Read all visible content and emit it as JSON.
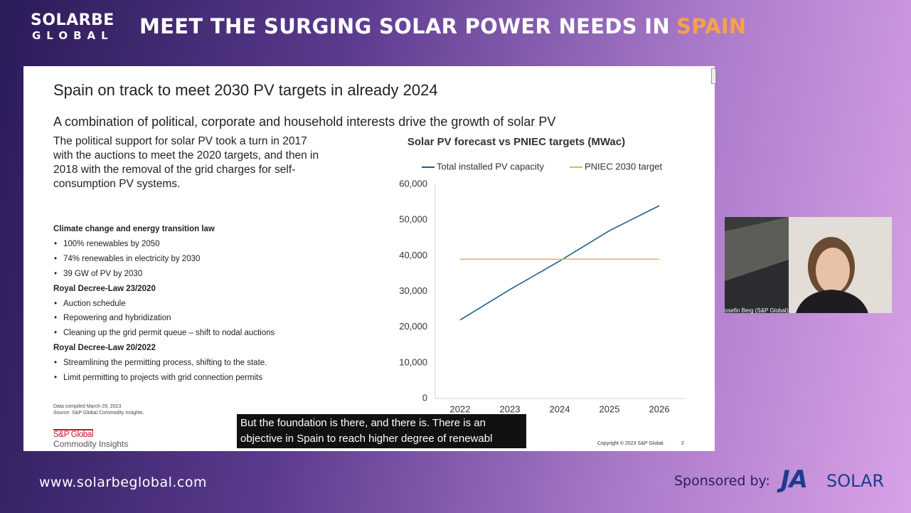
{
  "header": {
    "logo": [
      "SOLARBE",
      "GLOBAL"
    ],
    "title": [
      "MEET THE SURGING SOLAR POWER NEEDS IN",
      "SPAIN"
    ]
  },
  "slide": {
    "title": "Spain on track to meet 2030 PV targets in already 2024",
    "subtitle": "A combination of political, corporate and household interests drive the growth of solar PV",
    "paragraph": [
      "The political support for solar PV took a turn in 2017",
      "with the auctions to meet the 2020 targets, and then in",
      "2018 with the removal of the grid charges for self-",
      "consumption PV systems."
    ],
    "sections": [
      {
        "heading": "Climate change and energy transition law",
        "bullets": [
          "100% renewables by 2050",
          "74% renewables in electricity by 2030",
          "39 GW of PV by 2030"
        ]
      },
      {
        "heading": "Royal Decree-Law 23/2020",
        "bullets": [
          "Auction schedule",
          "Repowering and hybridization",
          "Cleaning up the grid permit queue – shift to nodal auctions"
        ]
      },
      {
        "heading": "Royal Decree-Law 20/2022",
        "bullets": [
          "Streamlining the permitting process, shifting to the state.",
          "Limit permitting to projects with grid connection permits"
        ]
      }
    ],
    "notes": [
      "Data compiled March 29, 2023",
      "Source: S&P Global Commodity Insights."
    ],
    "logo": [
      "S&P Global",
      "Commodity Insights"
    ],
    "copyright": "Copyright © 2023 S&P Global.",
    "page": "2"
  },
  "chart_data": {
    "type": "line",
    "title": "Solar PV forecast vs PNIEC targets (MWac)",
    "categories": [
      "2022",
      "2023",
      "2024",
      "2025",
      "2026"
    ],
    "series": [
      {
        "name": "Total installed PV capacity",
        "color": "#1f5f8b",
        "values": [
          22000,
          30500,
          38500,
          47000,
          54000
        ]
      },
      {
        "name": "PNIEC 2030 target",
        "color": "#e3b564",
        "values": [
          39000,
          39000,
          39000,
          39000,
          39000
        ]
      }
    ],
    "ylim": [
      0,
      60000
    ],
    "yticks": [
      0,
      {
        "value": 10000,
        "label": "10,000"
      },
      {
        "value": 20000,
        "label": "20,000"
      },
      {
        "value": 30000,
        "label": "30,000"
      },
      {
        "value": 40000,
        "label": "40,000"
      },
      {
        "value": 50000,
        "label": "50,000"
      },
      {
        "value": 60000,
        "label": "60,000"
      }
    ],
    "grid": false,
    "legend": "top"
  },
  "webcam": {
    "caption": "osefin Berg (S&P Global)"
  },
  "captions": [
    "But the foundation is there, and there is. There is an",
    "objective in Spain to reach higher degree of renewabl"
  ],
  "footer": {
    "url": "www.solarbeglobal.com",
    "sponsor": "Sponsored by:",
    "sponsor_logo": [
      "JA",
      "SOLAR"
    ]
  }
}
